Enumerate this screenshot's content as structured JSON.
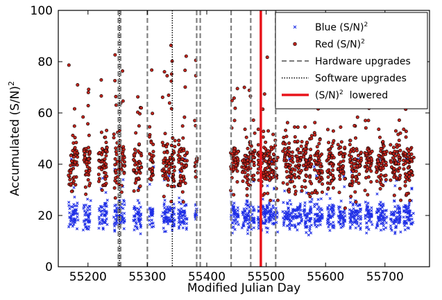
{
  "chart_data": {
    "type": "scatter",
    "title": "",
    "xlabel": "Modified Julian Day",
    "ylabel": "Accumulated (S/N)",
    "ylabel_sup": "2",
    "xlim": [
      55150,
      55775
    ],
    "ylim": [
      0,
      100
    ],
    "xticks": [
      55200,
      55300,
      55400,
      55500,
      55600,
      55700
    ],
    "yticks": [
      0,
      20,
      40,
      60,
      80,
      100
    ],
    "grid": false,
    "legend_position": "top-right",
    "legend": [
      {
        "label": "Blue (S/N)",
        "sup": "2",
        "kind": "blue-x"
      },
      {
        "label": "Red (S/N)",
        "sup": "2",
        "kind": "red-dot"
      },
      {
        "label": "Hardware upgrades",
        "sup": "",
        "kind": "dashed"
      },
      {
        "label": "Software upgrades",
        "sup": "",
        "kind": "dotted"
      },
      {
        "label": "(S/N)",
        "sup": "2",
        "label_after": "lowered",
        "kind": "red-line"
      }
    ],
    "colors": {
      "blue": "#1f2fe6",
      "red": "#c0251d",
      "red_edge": "#000000",
      "dashed": "#808080",
      "dotted": "#000000",
      "lowered": "#e8141b"
    },
    "hardware_upgrades": [
      55251,
      55255,
      55300,
      55383,
      55389,
      55441,
      55474,
      55516
    ],
    "software_upgrades": [
      55253,
      55342
    ],
    "sn_lowered": 55491,
    "series": [
      {
        "name": "Blue (S/N)^2",
        "x_ranges": [
          [
            55168,
            55183
          ],
          [
            55192,
            55204
          ],
          [
            55218,
            55232
          ],
          [
            55243,
            55262
          ],
          [
            55277,
            55290
          ],
          [
            55303,
            55310
          ],
          [
            55325,
            55347
          ],
          [
            55352,
            55367
          ],
          [
            55380,
            55383
          ],
          [
            55440,
            55453
          ],
          [
            55459,
            55481
          ],
          [
            55486,
            55519
          ],
          [
            55528,
            55545
          ],
          [
            55548,
            55560
          ],
          [
            55562,
            55577
          ],
          [
            55581,
            55595
          ],
          [
            55602,
            55615
          ],
          [
            55621,
            55633
          ],
          [
            55640,
            55660
          ],
          [
            55666,
            55678
          ],
          [
            55685,
            55703
          ],
          [
            55709,
            55726
          ],
          [
            55731,
            55748
          ]
        ],
        "y_center": 20,
        "y_spread": 4,
        "y_min": 11,
        "y_max": 42
      },
      {
        "name": "Red (S/N)^2",
        "x_ranges": [
          [
            55168,
            55183
          ],
          [
            55192,
            55204
          ],
          [
            55218,
            55232
          ],
          [
            55243,
            55262
          ],
          [
            55277,
            55290
          ],
          [
            55303,
            55310
          ],
          [
            55325,
            55347
          ],
          [
            55352,
            55367
          ],
          [
            55380,
            55383
          ],
          [
            55440,
            55453
          ],
          [
            55459,
            55481
          ],
          [
            55486,
            55519
          ],
          [
            55528,
            55545
          ],
          [
            55548,
            55560
          ],
          [
            55562,
            55577
          ],
          [
            55581,
            55595
          ],
          [
            55602,
            55615
          ],
          [
            55621,
            55633
          ],
          [
            55640,
            55660
          ],
          [
            55666,
            55678
          ],
          [
            55685,
            55703
          ],
          [
            55709,
            55726
          ],
          [
            55731,
            55748
          ]
        ],
        "y_center": 40,
        "y_spread": 9,
        "y_min": 17,
        "y_max": 93
      }
    ]
  }
}
